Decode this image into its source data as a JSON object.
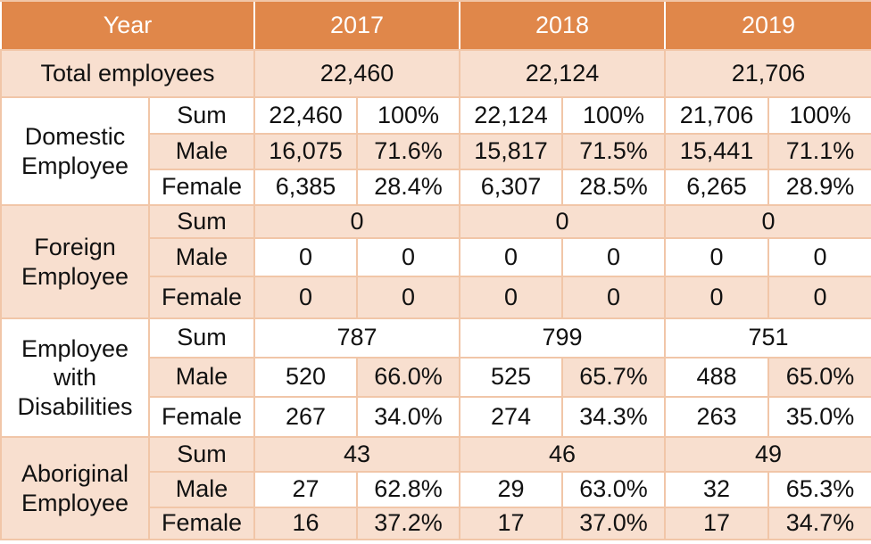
{
  "colors": {
    "header": "#e0874a",
    "band": "#f8dfcf",
    "white": "#ffffff"
  },
  "header": {
    "label": "Year",
    "years": [
      "2017",
      "2018",
      "2019"
    ]
  },
  "total": {
    "label": "Total employees",
    "values": [
      "22,460",
      "22,124",
      "21,706"
    ]
  },
  "domestic": {
    "label": "Domestic Employee",
    "rows": [
      {
        "label": "Sum",
        "cells": [
          "22,460",
          "100%",
          "22,124",
          "100%",
          "21,706",
          "100%"
        ]
      },
      {
        "label": "Male",
        "cells": [
          "16,075",
          "71.6%",
          "15,817",
          "71.5%",
          "15,441",
          "71.1%"
        ]
      },
      {
        "label": "Female",
        "cells": [
          "6,385",
          "28.4%",
          "6,307",
          "28.5%",
          "6,265",
          "28.9%"
        ]
      }
    ]
  },
  "foreign": {
    "label": "Foreign Employee",
    "sum_label": "Sum",
    "sums": [
      "0",
      "0",
      "0"
    ],
    "rows": [
      {
        "label": "Male",
        "cells": [
          "0",
          "0",
          "0",
          "0",
          "0",
          "0"
        ]
      },
      {
        "label": "Female",
        "cells": [
          "0",
          "0",
          "0",
          "0",
          "0",
          "0"
        ]
      }
    ]
  },
  "disabilities": {
    "label": "Employee with Disabilities",
    "sum_label": "Sum",
    "sums": [
      "787",
      "799",
      "751"
    ],
    "rows": [
      {
        "label": "Male",
        "cells": [
          "520",
          "66.0%",
          "525",
          "65.7%",
          "488",
          "65.0%"
        ]
      },
      {
        "label": "Female",
        "cells": [
          "267",
          "34.0%",
          "274",
          "34.3%",
          "263",
          "35.0%"
        ]
      }
    ]
  },
  "aboriginal": {
    "label": "Aboriginal Employee",
    "sum_label": "Sum",
    "sums": [
      "43",
      "46",
      "49"
    ],
    "rows": [
      {
        "label": "Male",
        "cells": [
          "27",
          "62.8%",
          "29",
          "63.0%",
          "32",
          "65.3%"
        ]
      },
      {
        "label": "Female",
        "cells": [
          "16",
          "37.2%",
          "17",
          "37.0%",
          "17",
          "34.7%"
        ]
      }
    ]
  }
}
